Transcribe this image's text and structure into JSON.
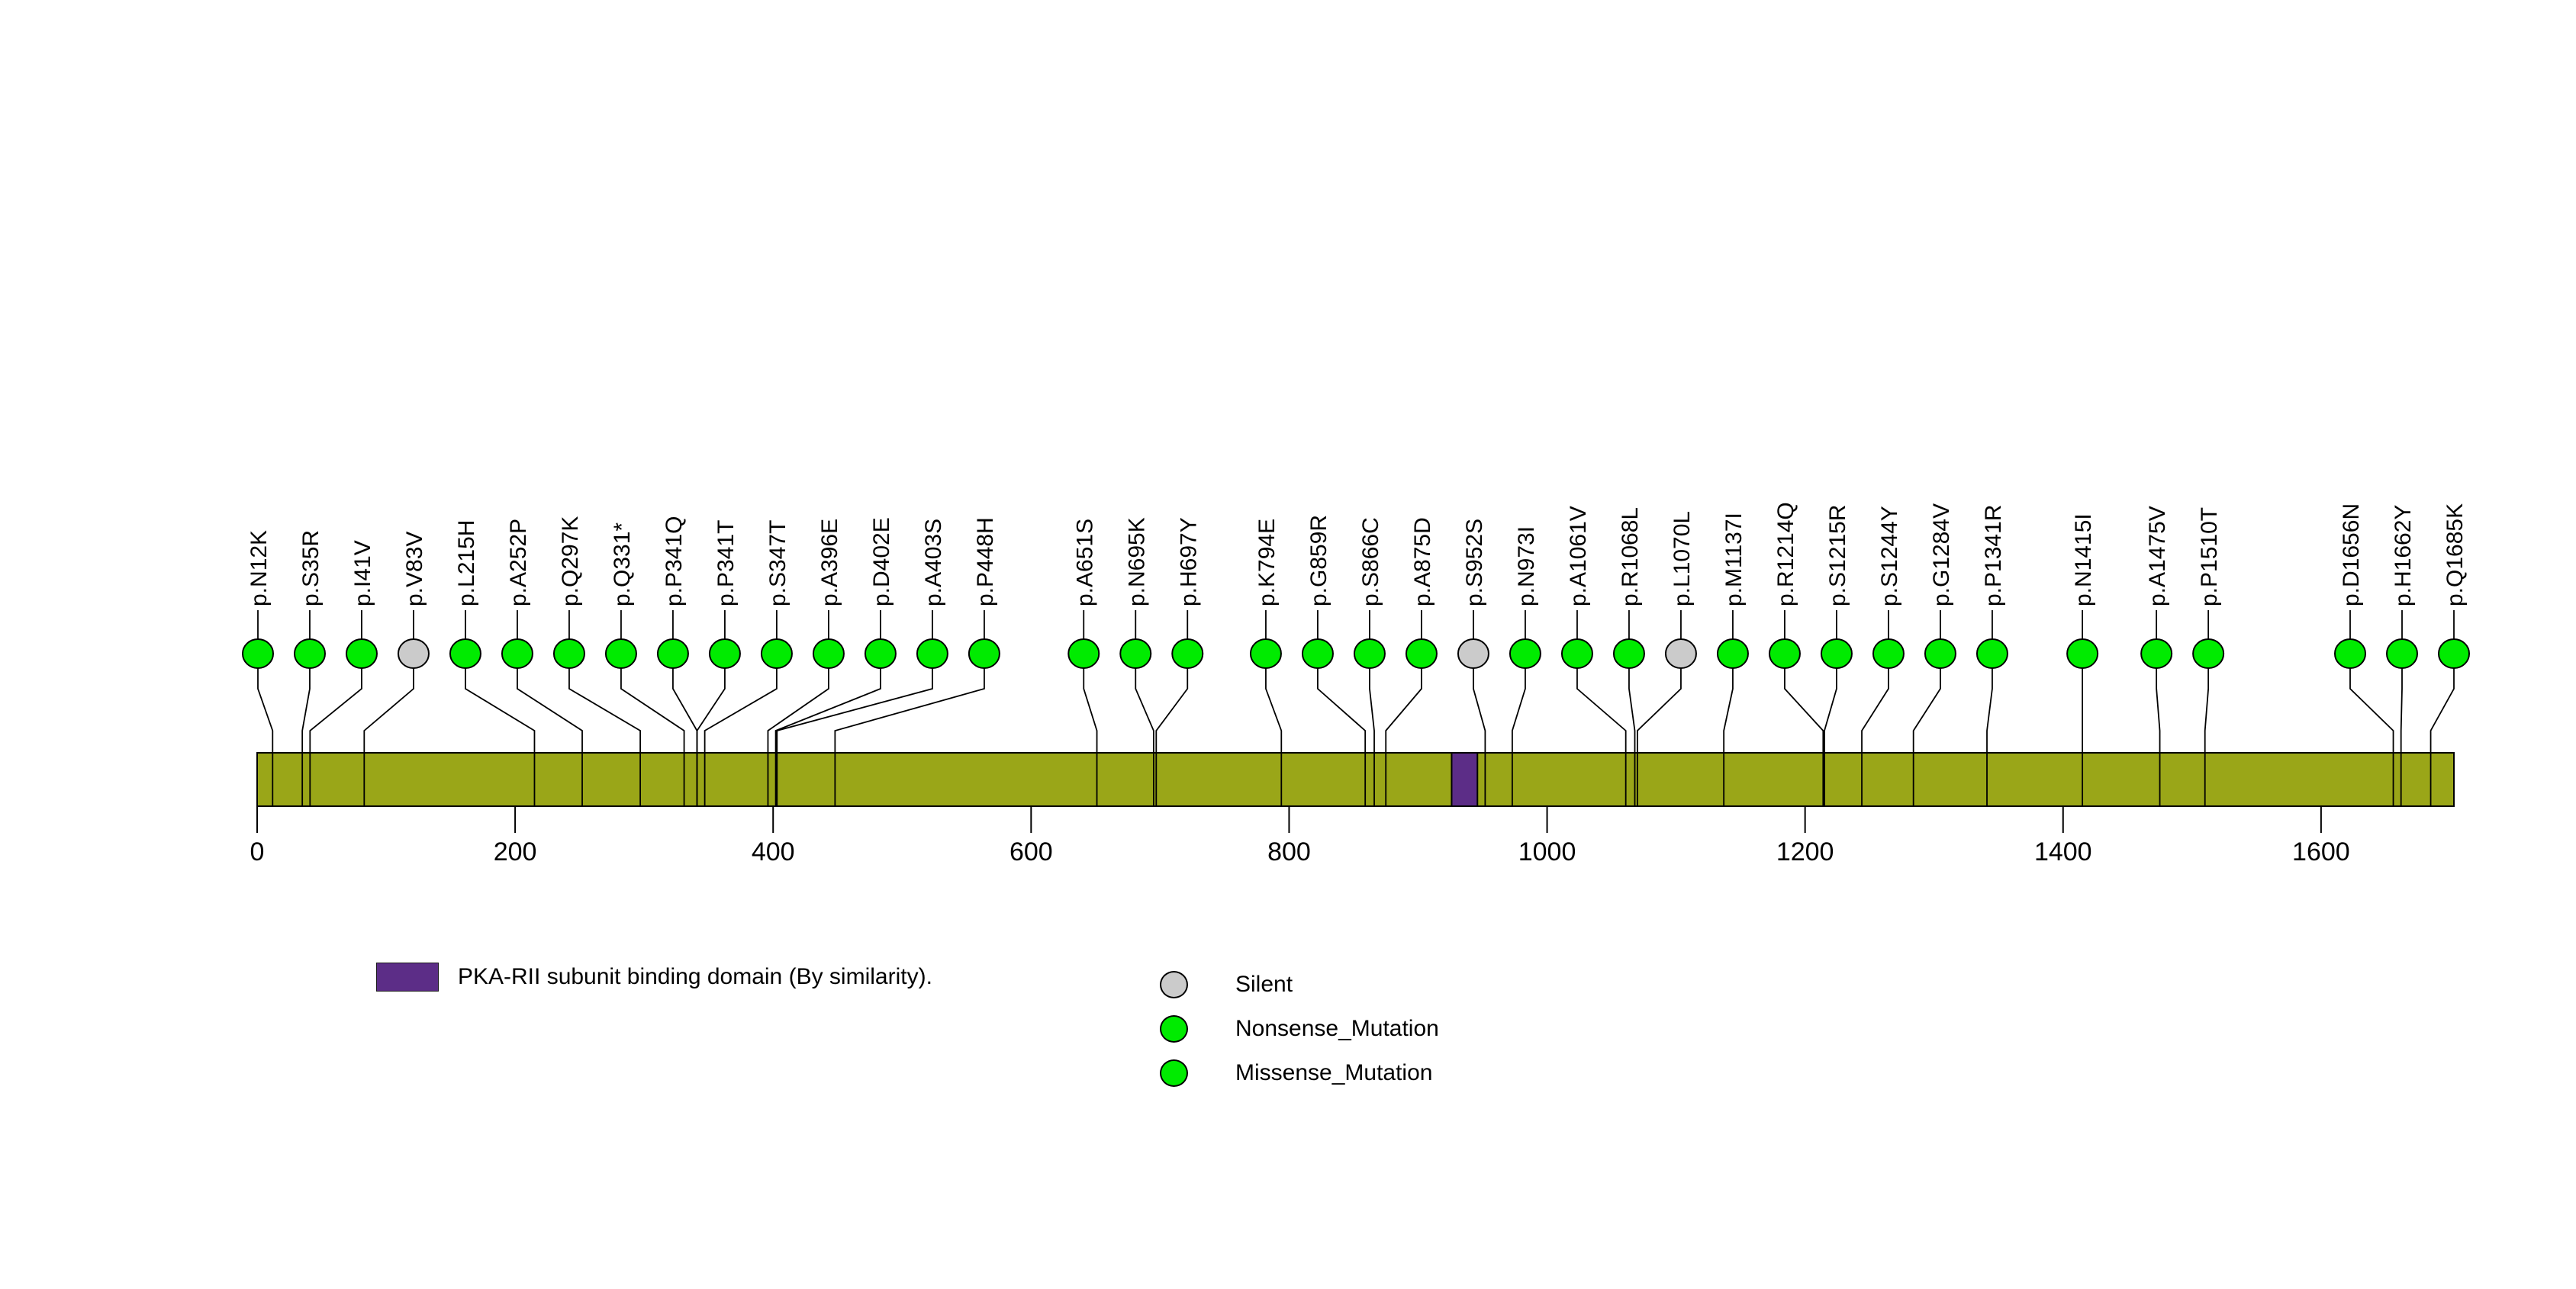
{
  "chart_data": {
    "type": "lollipop",
    "title": "",
    "protein_length": 1703,
    "x_axis_ticks": [
      0,
      200,
      400,
      600,
      800,
      1000,
      1200,
      1400,
      1600
    ],
    "grid": false,
    "background": "#FFFFFF",
    "protein_bar_color": "#9AA618",
    "domains": [
      {
        "label": "PKA-RII subunit binding domain (By similarity).",
        "start": 926,
        "end": 946,
        "color": "#5C2D87"
      }
    ],
    "mutation_colors": {
      "Missense_Mutation": "#00EB00",
      "Nonsense_Mutation": "#00EB00",
      "Silent": "#CBCBCB"
    },
    "mutations": [
      {
        "label": "p.N12K",
        "pos": 12,
        "type": "Missense_Mutation"
      },
      {
        "label": "p.S35R",
        "pos": 35,
        "type": "Missense_Mutation"
      },
      {
        "label": "p.I41V",
        "pos": 41,
        "type": "Missense_Mutation"
      },
      {
        "label": "p.V83V",
        "pos": 83,
        "type": "Silent"
      },
      {
        "label": "p.L215H",
        "pos": 215,
        "type": "Missense_Mutation"
      },
      {
        "label": "p.A252P",
        "pos": 252,
        "type": "Missense_Mutation"
      },
      {
        "label": "p.Q297K",
        "pos": 297,
        "type": "Missense_Mutation"
      },
      {
        "label": "p.Q331*",
        "pos": 331,
        "type": "Nonsense_Mutation"
      },
      {
        "label": "p.P341Q",
        "pos": 341,
        "type": "Missense_Mutation"
      },
      {
        "label": "p.P341T",
        "pos": 341,
        "type": "Missense_Mutation"
      },
      {
        "label": "p.S347T",
        "pos": 347,
        "type": "Missense_Mutation"
      },
      {
        "label": "p.A396E",
        "pos": 396,
        "type": "Missense_Mutation"
      },
      {
        "label": "p.D402E",
        "pos": 402,
        "type": "Missense_Mutation"
      },
      {
        "label": "p.A403S",
        "pos": 403,
        "type": "Missense_Mutation"
      },
      {
        "label": "p.P448H",
        "pos": 448,
        "type": "Missense_Mutation"
      },
      {
        "label": "p.A651S",
        "pos": 651,
        "type": "Missense_Mutation"
      },
      {
        "label": "p.N695K",
        "pos": 695,
        "type": "Missense_Mutation"
      },
      {
        "label": "p.H697Y",
        "pos": 697,
        "type": "Missense_Mutation"
      },
      {
        "label": "p.K794E",
        "pos": 794,
        "type": "Missense_Mutation"
      },
      {
        "label": "p.G859R",
        "pos": 859,
        "type": "Missense_Mutation"
      },
      {
        "label": "p.S866C",
        "pos": 866,
        "type": "Missense_Mutation"
      },
      {
        "label": "p.A875D",
        "pos": 875,
        "type": "Missense_Mutation"
      },
      {
        "label": "p.S952S",
        "pos": 952,
        "type": "Silent"
      },
      {
        "label": "p.N973I",
        "pos": 973,
        "type": "Missense_Mutation"
      },
      {
        "label": "p.A1061V",
        "pos": 1061,
        "type": "Missense_Mutation"
      },
      {
        "label": "p.R1068L",
        "pos": 1068,
        "type": "Missense_Mutation"
      },
      {
        "label": "p.L1070L",
        "pos": 1070,
        "type": "Silent"
      },
      {
        "label": "p.M1137I",
        "pos": 1137,
        "type": "Missense_Mutation"
      },
      {
        "label": "p.R1214Q",
        "pos": 1214,
        "type": "Missense_Mutation"
      },
      {
        "label": "p.S1215R",
        "pos": 1215,
        "type": "Missense_Mutation"
      },
      {
        "label": "p.S1244Y",
        "pos": 1244,
        "type": "Missense_Mutation"
      },
      {
        "label": "p.G1284V",
        "pos": 1284,
        "type": "Missense_Mutation"
      },
      {
        "label": "p.P1341R",
        "pos": 1341,
        "type": "Missense_Mutation"
      },
      {
        "label": "p.N1415I",
        "pos": 1415,
        "type": "Missense_Mutation"
      },
      {
        "label": "p.A1475V",
        "pos": 1475,
        "type": "Missense_Mutation"
      },
      {
        "label": "p.P1510T",
        "pos": 1510,
        "type": "Missense_Mutation"
      },
      {
        "label": "p.D1656N",
        "pos": 1656,
        "type": "Missense_Mutation"
      },
      {
        "label": "p.H1662Y",
        "pos": 1662,
        "type": "Missense_Mutation"
      },
      {
        "label": "p.Q1685K",
        "pos": 1685,
        "type": "Missense_Mutation"
      }
    ]
  },
  "legend": {
    "items": [
      {
        "label": "Silent",
        "color": "#CBCBCB"
      },
      {
        "label": "Nonsense_Mutation",
        "color": "#00EB00"
      },
      {
        "label": "Missense_Mutation",
        "color": "#00EB00"
      }
    ]
  }
}
